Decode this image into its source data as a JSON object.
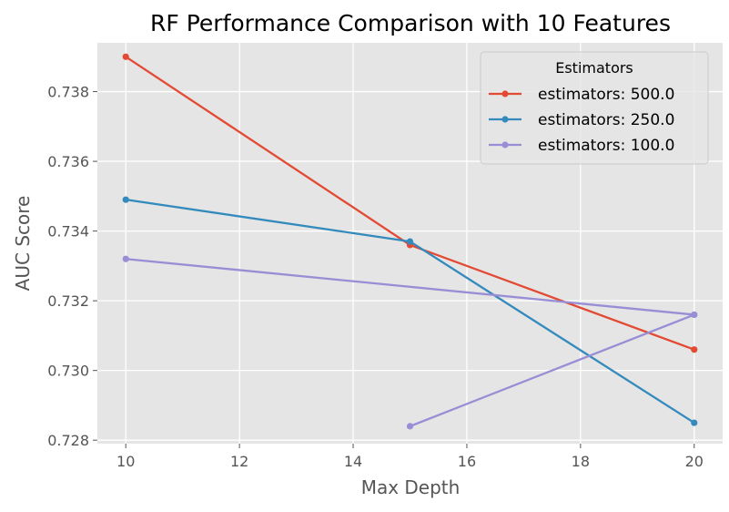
{
  "chart_data": {
    "type": "line",
    "title": "RF Performance Comparison with 10 Features",
    "xlabel": "Max Depth",
    "ylabel": "AUC Score",
    "xlim": [
      9.5,
      20.5
    ],
    "ylim": [
      0.7279,
      0.7394
    ],
    "x_ticks": [
      10,
      12,
      14,
      16,
      18,
      20
    ],
    "y_ticks": [
      0.728,
      0.73,
      0.732,
      0.734,
      0.736,
      0.738
    ],
    "x_tick_labels": [
      "10",
      "12",
      "14",
      "16",
      "18",
      "20"
    ],
    "y_tick_labels": [
      "0.728",
      "0.730",
      "0.732",
      "0.734",
      "0.736",
      "0.738"
    ],
    "grid": true,
    "legend": {
      "title": "Estimators",
      "placement": "top-right"
    },
    "series": [
      {
        "name": "estimators: 500.0",
        "color": "#e24a33",
        "x": [
          10,
          15,
          20
        ],
        "y": [
          0.739,
          0.7336,
          0.7306
        ]
      },
      {
        "name": "estimators: 250.0",
        "color": "#348abd",
        "x": [
          10,
          15,
          20
        ],
        "y": [
          0.7349,
          0.7337,
          0.7285
        ]
      },
      {
        "name": "estimators: 100.0",
        "color": "#988ed5",
        "x": [
          10,
          20,
          15,
          20
        ],
        "y": [
          0.7332,
          0.7316,
          0.7284,
          0.7316
        ]
      }
    ]
  }
}
